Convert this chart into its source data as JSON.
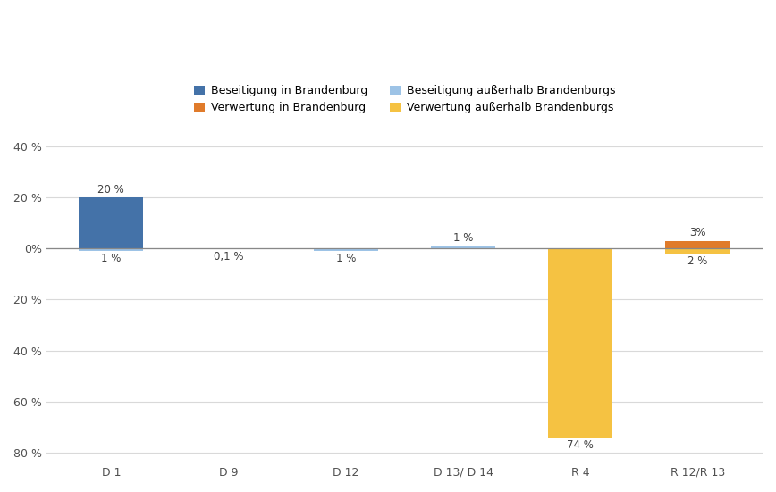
{
  "categories": [
    "D 1",
    "D 9",
    "D 12",
    "D 13/ D 14",
    "R 4",
    "R 12/R 13"
  ],
  "series": [
    {
      "name": "Beseitigung in Brandenburg",
      "color": "#4472a8",
      "values": [
        20,
        0,
        0,
        0,
        0,
        0
      ],
      "label_above": [
        "20 %",
        "",
        "",
        "",
        "",
        ""
      ],
      "label_below": [
        "",
        "",
        "",
        "",
        "",
        ""
      ]
    },
    {
      "name": "Beseitigung außerhalb Brandenburgs",
      "color": "#9dc3e6",
      "values": [
        -1,
        -0.1,
        -1,
        1,
        0,
        0
      ],
      "label_above": [
        "",
        "",
        "",
        "1 %",
        "",
        ""
      ],
      "label_below": [
        "1 %",
        "0,1 %",
        "1 %",
        "",
        "",
        ""
      ]
    },
    {
      "name": "Verwertung in Brandenburg",
      "color": "#e07b2b",
      "values": [
        0,
        0,
        0,
        0,
        0,
        3
      ],
      "label_above": [
        "",
        "",
        "",
        "",
        "",
        "3%"
      ],
      "label_below": [
        "",
        "",
        "",
        "",
        "",
        ""
      ]
    },
    {
      "name": "Verwertung außerhalb Brandenburgs",
      "color": "#f5c242",
      "values": [
        0,
        0,
        0,
        0,
        -74,
        -2
      ],
      "label_above": [
        "",
        "",
        "",
        "",
        "",
        ""
      ],
      "label_below": [
        "",
        "",
        "",
        "",
        "74 %",
        "2 %"
      ]
    }
  ],
  "ylim": [
    -84,
    46
  ],
  "yticks": [
    40,
    20,
    0,
    -20,
    -40,
    -60,
    -80
  ],
  "ytick_labels": [
    "40 %",
    "20 %",
    "0%",
    "20 %",
    "40 %",
    "60 %",
    "80 %"
  ],
  "background_color": "#ffffff",
  "grid_color": "#d9d9d9",
  "bar_width": 0.55
}
